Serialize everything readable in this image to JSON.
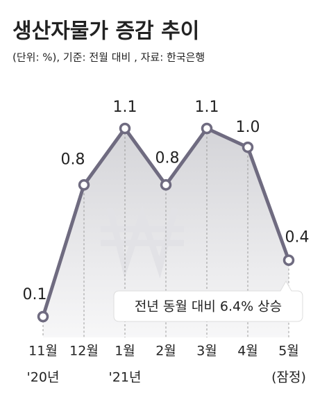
{
  "chart_data": {
    "type": "line",
    "title": "생산자물가 증감 추이",
    "subtitle": "(단위: %), 기준: 전월 대비 , 자료: 한국은행",
    "annotation": "전년 동월 대비 6.4% 상승",
    "categories": [
      "11월",
      "12월",
      "1월",
      "2월",
      "3월",
      "4월",
      "5월"
    ],
    "category_sublabels": [
      "'20년",
      null,
      "'21년",
      null,
      null,
      null,
      "(잠정)"
    ],
    "values": [
      0.1,
      0.8,
      1.1,
      0.8,
      1.1,
      1.0,
      0.4
    ],
    "value_labels": [
      "0.1",
      "0.8",
      "1.1",
      "0.8",
      "1.1",
      "1.0",
      "0.4"
    ],
    "color": "#6f6b80"
  }
}
